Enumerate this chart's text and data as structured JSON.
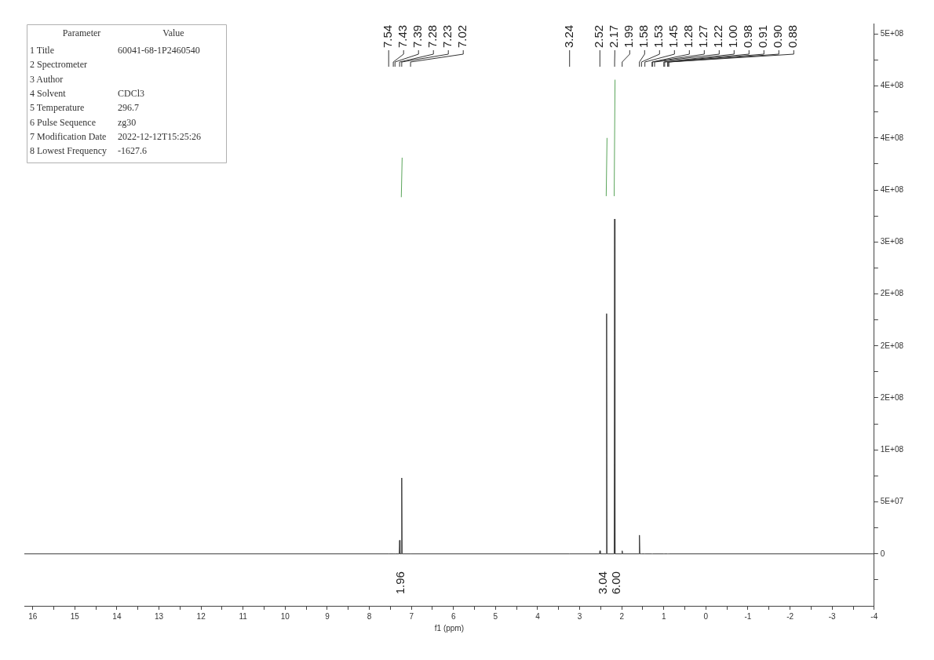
{
  "chart_data": {
    "type": "line",
    "xlabel": "f1 (ppm)",
    "series": [
      {
        "color": "#3a3a3a",
        "x": [
          16.2,
          7.54,
          7.43,
          7.39,
          7.29,
          7.28,
          7.27,
          7.24,
          7.23,
          7.22,
          7.02,
          3.24,
          2.53,
          2.52,
          2.51,
          2.37,
          2.36,
          2.35,
          2.18,
          2.17,
          2.16,
          2.0,
          1.99,
          1.98,
          1.59,
          1.58,
          1.57,
          1.53,
          1.45,
          1.28,
          1.27,
          1.22,
          1.0,
          0.98,
          0.91,
          0.9,
          0.88,
          -4
        ],
        "values": [
          0,
          0,
          0,
          0,
          0,
          13000000,
          0,
          0,
          73000000,
          0,
          0,
          0,
          0,
          3000000,
          0,
          0,
          231000000,
          0,
          0,
          322000000,
          0,
          0,
          3000000,
          0,
          0,
          18000000,
          0,
          0,
          0,
          0,
          0,
          0,
          0,
          0,
          0,
          0,
          0,
          0
        ]
      },
      {
        "color": "#5aa55a",
        "x": [
          7.24,
          7.22
        ],
        "values": [
          343000000,
          381000000
        ]
      },
      {
        "color": "#5aa55a",
        "x": [
          2.37,
          2.35
        ],
        "values": [
          344000000,
          400000000
        ]
      },
      {
        "color": "#5aa55a",
        "x": [
          2.18,
          2.16
        ],
        "values": [
          344000000,
          456000000
        ]
      }
    ],
    "xlim": [
      16.2,
      -4
    ],
    "xticks": [
      16,
      {
        "value": 15.5,
        "label": null
      },
      15,
      {
        "value": 14.5,
        "label": null
      },
      14,
      {
        "value": 13.5,
        "label": null
      },
      13,
      {
        "value": 12.5,
        "label": null
      },
      12,
      {
        "value": 11.5,
        "label": null
      },
      11,
      {
        "value": 10.5,
        "label": null
      },
      10,
      {
        "value": 9.5,
        "label": null
      },
      9,
      {
        "value": 8.5,
        "label": null
      },
      8,
      {
        "value": 7.5,
        "label": null
      },
      7,
      {
        "value": 6.5,
        "label": null
      },
      6,
      {
        "value": 5.5,
        "label": null
      },
      5,
      {
        "value": 4.5,
        "label": null
      },
      4,
      {
        "value": 3.5,
        "label": null
      },
      3,
      {
        "value": 2.5,
        "label": null
      },
      2,
      {
        "value": 1.5,
        "label": null
      },
      1,
      {
        "value": 0.5,
        "label": null
      },
      0,
      {
        "value": -0.5,
        "label": null
      },
      -1,
      {
        "value": -1.5,
        "label": null
      },
      -2,
      {
        "value": -2.5,
        "label": null
      },
      -3,
      {
        "value": -3.5,
        "label": null
      },
      -4
    ],
    "ylim": [
      -50000000,
      510000000
    ],
    "yticks": [
      {
        "value": -25000000,
        "label": null
      },
      0,
      {
        "value": 25000000,
        "label": null
      },
      {
        "value": 50000000,
        "label": "5E+07"
      },
      {
        "value": 75000000,
        "label": null
      },
      {
        "value": 100000000,
        "label": "1E+08"
      },
      {
        "value": 125000000,
        "label": null
      },
      {
        "value": 150000000,
        "label": "2E+08"
      },
      {
        "value": 175000000,
        "label": null
      },
      {
        "value": 200000000,
        "label": "2E+08"
      },
      {
        "value": 225000000,
        "label": null
      },
      {
        "value": 250000000,
        "label": "2E+08"
      },
      {
        "value": 275000000,
        "label": null
      },
      {
        "value": 300000000,
        "label": "3E+08"
      },
      {
        "value": 325000000,
        "label": null
      },
      {
        "value": 350000000,
        "label": "4E+08"
      },
      {
        "value": 375000000,
        "label": null
      },
      {
        "value": 400000000,
        "label": "4E+08"
      },
      {
        "value": 425000000,
        "label": null
      },
      {
        "value": 450000000,
        "label": "4E+08"
      },
      {
        "value": 475000000,
        "label": null
      },
      {
        "value": 500000000,
        "label": "5E+08"
      }
    ],
    "annotations": [
      "Parameter\tValue",
      "1 Title\t60041-68-1P2460540",
      "2 Spectrometer",
      "3 Author",
      "4 Solvent\tCDCl3",
      "5 Temperature\t296.7",
      "6 Pulse Sequence\tzg30",
      "7 Modification Date\t2022-12-12T15:25:26",
      "8 Lowest Frequency\t-1627.6",
      {
        "text": "7.54",
        "x": 7.54
      },
      {
        "text": "7.43",
        "x": 7.43
      },
      {
        "text": "7.39",
        "x": 7.39
      },
      {
        "text": "7.28",
        "x": 7.28
      },
      {
        "text": "7.23",
        "x": 7.23
      },
      {
        "text": "7.02",
        "x": 7.02
      },
      {
        "text": "3.24",
        "x": 3.24
      },
      {
        "text": "2.52",
        "x": 2.52
      },
      {
        "text": "2.17",
        "x": 2.17
      },
      {
        "text": "1.99",
        "x": 1.99
      },
      {
        "text": "1.58",
        "x": 1.58
      },
      {
        "text": "1.53",
        "x": 1.53
      },
      {
        "text": "1.45",
        "x": 1.45
      },
      {
        "text": "1.28",
        "x": 1.28
      },
      {
        "text": "1.27",
        "x": 1.27
      },
      {
        "text": "1.22",
        "x": 1.22
      },
      {
        "text": "1.00",
        "x": 1.0
      },
      {
        "text": "0.98",
        "x": 0.98
      },
      {
        "text": "0.91",
        "x": 0.91
      },
      {
        "text": "0.90",
        "x": 0.9
      },
      {
        "text": "0.88",
        "x": 0.88
      },
      {
        "text": "1.96",
        "x": 7.24,
        "y": 0
      },
      {
        "text": "3.04",
        "x": 2.37,
        "y": 0
      },
      {
        "text": "6.00",
        "x": 2.18,
        "y": 0
      }
    ]
  }
}
